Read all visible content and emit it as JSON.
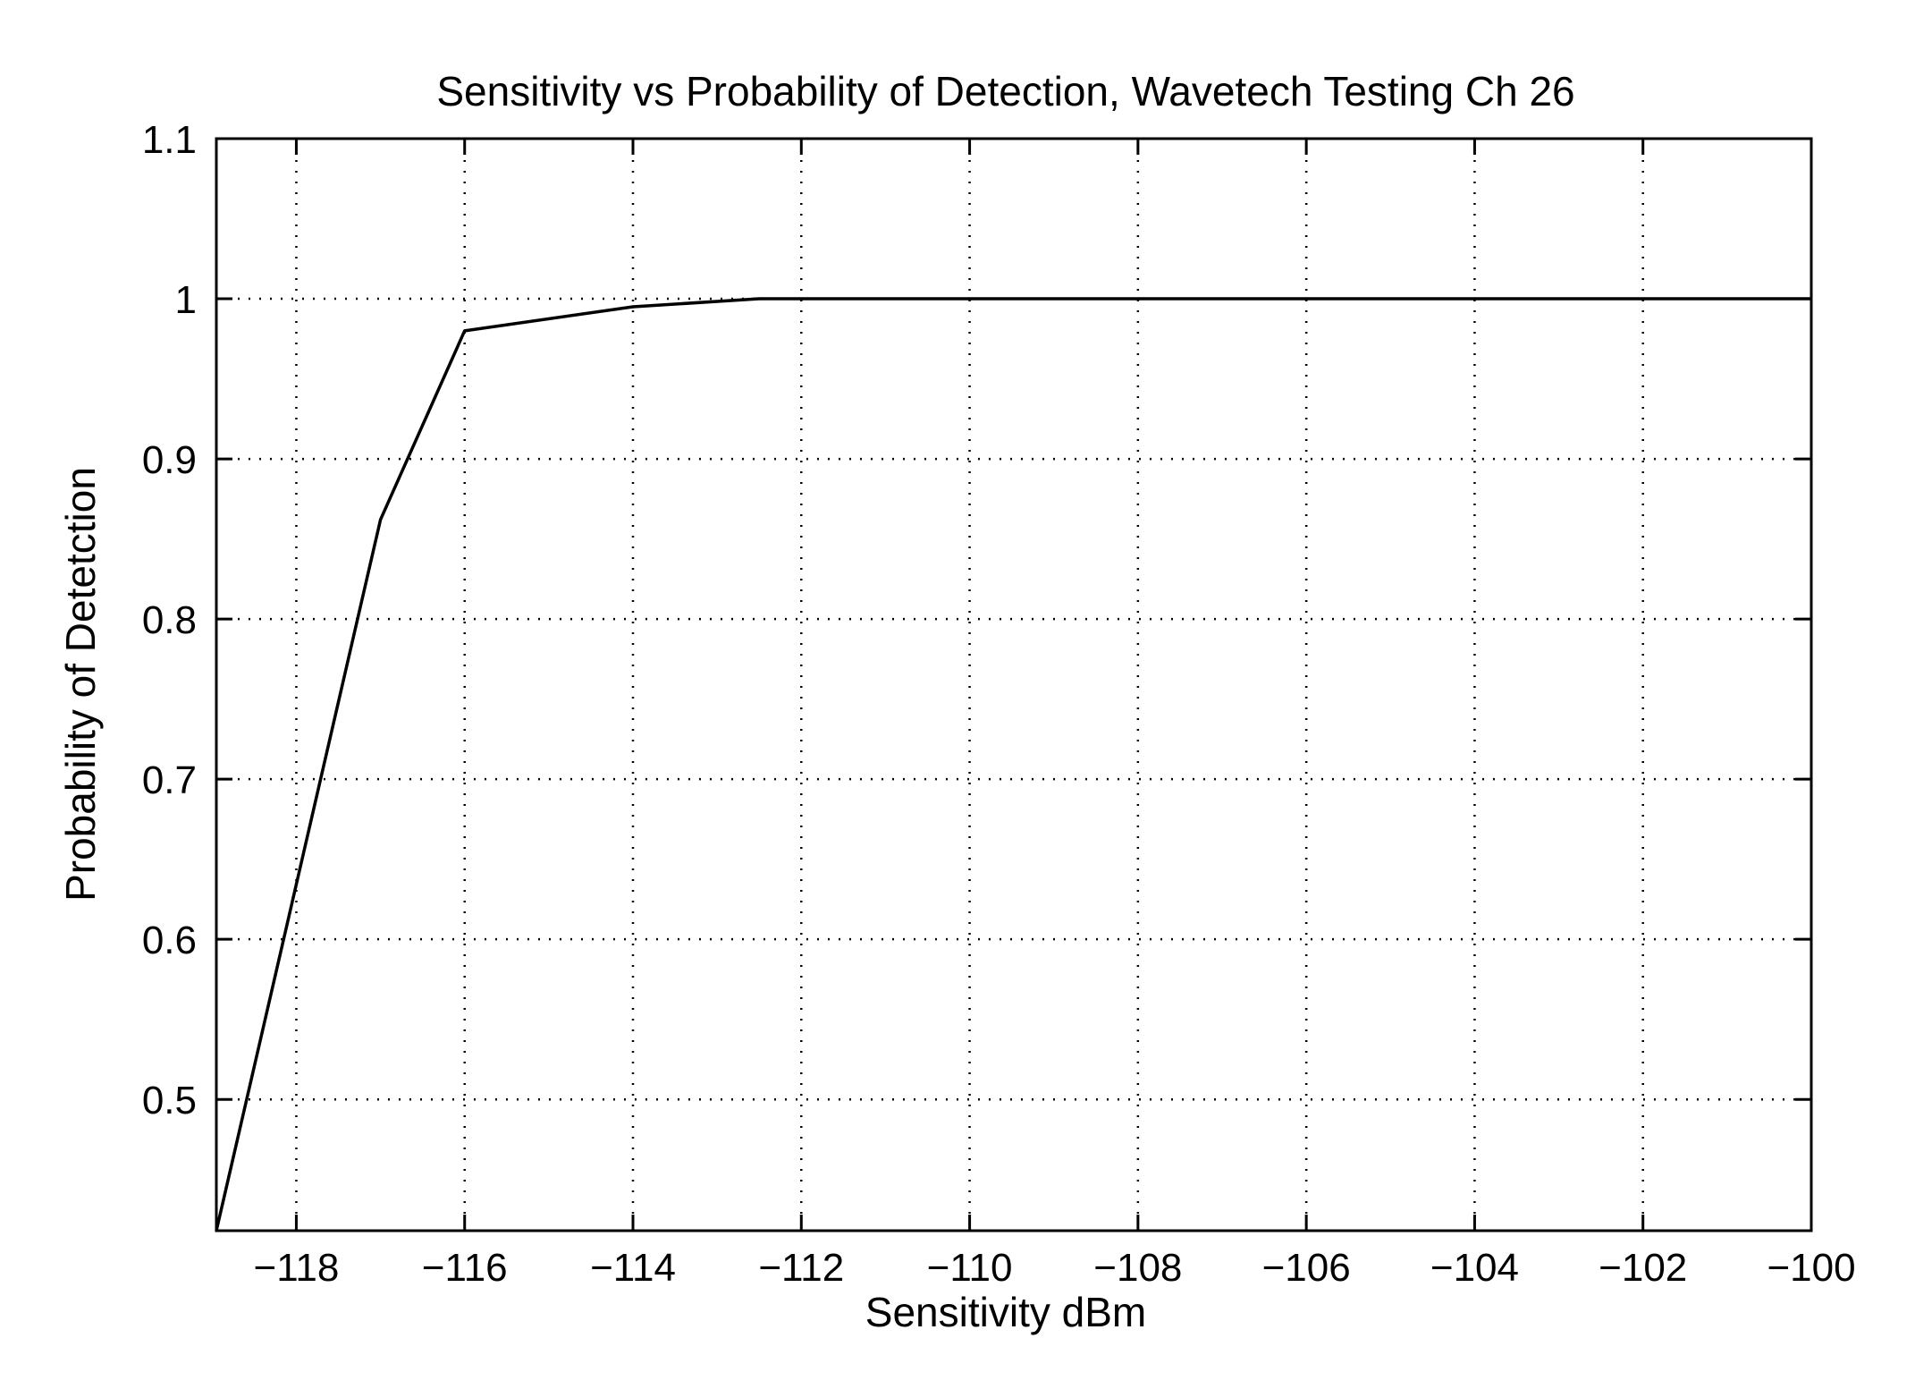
{
  "chart_data": {
    "type": "line",
    "title": "Sensitivity vs Probability of Detection, Wavetech Testing Ch 26",
    "xlabel": "Sensitivity dBm",
    "ylabel": "Probability of Detetction",
    "xlim": [
      -118.95,
      -100
    ],
    "ylim": [
      0.418,
      1.1
    ],
    "xticks": [
      -118,
      -116,
      -114,
      -112,
      -110,
      -108,
      -106,
      -104,
      -102,
      -100
    ],
    "yticks": [
      0.5,
      0.6,
      0.7,
      0.8,
      0.9,
      1,
      1.1
    ],
    "grid": true,
    "series": [
      {
        "color": "#000000",
        "x": [
          -118.95,
          -117,
          -116,
          -114,
          -112.5,
          -100
        ],
        "y": [
          0.418,
          0.862,
          0.98,
          0.995,
          1.0,
          1.0
        ]
      }
    ]
  }
}
